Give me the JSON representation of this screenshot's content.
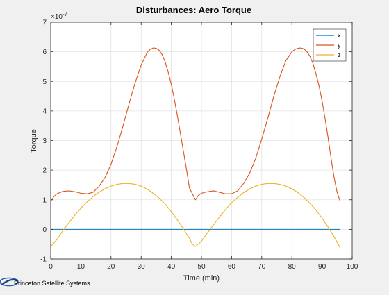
{
  "chart_data": {
    "type": "line",
    "title": "Disturbances: Aero Torque",
    "xlabel": "Time (min)",
    "ylabel": "Torque",
    "y_multiplier": "×10",
    "y_exponent": "-7",
    "xlim": [
      0,
      100
    ],
    "ylim": [
      -1,
      7
    ],
    "x_ticks": [
      0,
      10,
      20,
      30,
      40,
      50,
      60,
      70,
      80,
      90,
      100
    ],
    "y_ticks": [
      -1,
      0,
      1,
      2,
      3,
      4,
      5,
      6,
      7
    ],
    "grid": true,
    "legend_position": "top-right",
    "series": [
      {
        "name": "x",
        "color": "#0072bd",
        "x": [
          0,
          96
        ],
        "y": [
          0,
          0
        ]
      },
      {
        "name": "y",
        "color": "#d95319",
        "x": [
          0,
          1,
          2,
          4,
          6,
          8,
          10,
          12,
          14,
          16,
          18,
          20,
          22,
          24,
          26,
          28,
          30,
          32,
          33,
          34,
          35,
          36,
          37,
          38,
          39,
          40,
          41,
          42,
          43,
          44,
          45,
          46,
          47,
          48,
          49,
          50,
          52,
          54,
          56,
          58,
          60,
          62,
          64,
          66,
          68,
          70,
          72,
          74,
          76,
          78,
          80,
          81,
          82,
          83,
          84,
          85,
          86,
          87,
          88,
          89,
          90,
          91,
          92,
          93,
          94,
          95,
          96
        ],
        "y": [
          0.95,
          1.1,
          1.2,
          1.28,
          1.3,
          1.27,
          1.22,
          1.2,
          1.25,
          1.45,
          1.75,
          2.2,
          2.8,
          3.5,
          4.25,
          4.95,
          5.55,
          5.98,
          6.08,
          6.13,
          6.12,
          6.05,
          5.9,
          5.65,
          5.3,
          4.9,
          4.4,
          3.85,
          3.25,
          2.65,
          2.05,
          1.4,
          1.2,
          1.0,
          1.15,
          1.22,
          1.27,
          1.3,
          1.25,
          1.2,
          1.2,
          1.3,
          1.55,
          1.9,
          2.4,
          3.05,
          3.75,
          4.5,
          5.15,
          5.7,
          6.0,
          6.08,
          6.12,
          6.13,
          6.1,
          6.0,
          5.85,
          5.6,
          5.25,
          4.85,
          4.35,
          3.75,
          3.1,
          2.4,
          1.75,
          1.25,
          0.95
        ]
      },
      {
        "name": "z",
        "color": "#edb120",
        "x": [
          0,
          2,
          4,
          6,
          8,
          10,
          12,
          14,
          16,
          18,
          20,
          22,
          24,
          26,
          28,
          30,
          32,
          34,
          36,
          38,
          40,
          42,
          44,
          46,
          47,
          48,
          50,
          52,
          54,
          56,
          58,
          60,
          62,
          64,
          66,
          68,
          70,
          72,
          74,
          76,
          78,
          80,
          82,
          84,
          86,
          88,
          90,
          92,
          94,
          96
        ],
        "y": [
          -0.58,
          -0.35,
          -0.05,
          0.22,
          0.48,
          0.72,
          0.92,
          1.1,
          1.25,
          1.37,
          1.46,
          1.52,
          1.55,
          1.55,
          1.52,
          1.46,
          1.36,
          1.22,
          1.05,
          0.85,
          0.6,
          0.32,
          0.02,
          -0.3,
          -0.5,
          -0.58,
          -0.4,
          -0.12,
          0.15,
          0.42,
          0.67,
          0.9,
          1.08,
          1.24,
          1.37,
          1.46,
          1.52,
          1.55,
          1.55,
          1.52,
          1.46,
          1.37,
          1.24,
          1.08,
          0.88,
          0.65,
          0.38,
          0.08,
          -0.25,
          -0.62
        ]
      }
    ]
  },
  "footer": {
    "company": "Princeton Satellite Systems"
  }
}
